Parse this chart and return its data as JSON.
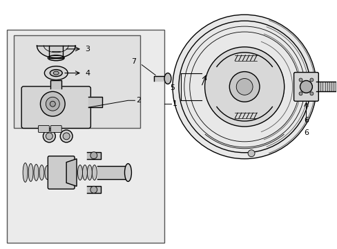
{
  "bg_color": "#ffffff",
  "outer_bg": "#f0f0f0",
  "black": "#000000",
  "part_fill": "#e8e8e8",
  "part_stroke": "#333333",
  "inset_fill": "#e0e0e0",
  "booster_bg": "#ffffff",
  "figsize": [
    4.89,
    3.6
  ],
  "dpi": 100,
  "xlim": [
    0,
    489
  ],
  "ylim": [
    0,
    360
  ]
}
